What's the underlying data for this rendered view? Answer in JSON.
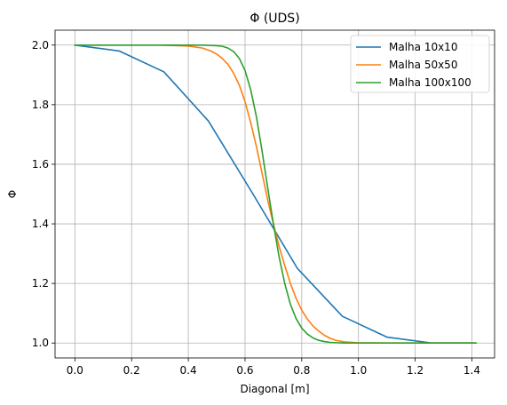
{
  "chart_data": {
    "type": "line",
    "title": "Φ (UDS)",
    "xlabel": "Diagonal [m]",
    "ylabel": "Φ",
    "xlim": [
      -0.07,
      1.48
    ],
    "ylim": [
      0.95,
      2.05
    ],
    "xticks": [
      0.0,
      0.2,
      0.4,
      0.6,
      0.8,
      1.0,
      1.2,
      1.4
    ],
    "xtick_labels": [
      "0.0",
      "0.2",
      "0.4",
      "0.6",
      "0.8",
      "1.0",
      "1.2",
      "1.4"
    ],
    "yticks": [
      1.0,
      1.2,
      1.4,
      1.6,
      1.8,
      2.0
    ],
    "ytick_labels": [
      "1.0",
      "1.2",
      "1.4",
      "1.6",
      "1.8",
      "2.0"
    ],
    "grid": true,
    "legend_position": "top-right",
    "series": [
      {
        "name": "Malha 10x10",
        "color": "#1f77b4",
        "x": [
          0.0,
          0.157,
          0.314,
          0.471,
          0.628,
          0.785,
          0.943,
          1.1,
          1.257,
          1.414
        ],
        "y": [
          2.0,
          1.98,
          1.91,
          1.745,
          1.5,
          1.25,
          1.09,
          1.02,
          1.0,
          1.0
        ]
      },
      {
        "name": "Malha 50x50",
        "color": "#ff7f0e",
        "x": [
          0.0,
          0.2,
          0.3,
          0.4,
          0.45,
          0.48,
          0.5,
          0.52,
          0.54,
          0.56,
          0.58,
          0.6,
          0.62,
          0.64,
          0.66,
          0.68,
          0.7,
          0.72,
          0.74,
          0.76,
          0.78,
          0.8,
          0.82,
          0.84,
          0.86,
          0.88,
          0.9,
          0.92,
          0.95,
          1.0,
          1.1,
          1.2,
          1.414
        ],
        "y": [
          2.0,
          2.0,
          2.0,
          1.997,
          1.99,
          1.98,
          1.97,
          1.955,
          1.935,
          1.905,
          1.865,
          1.81,
          1.74,
          1.66,
          1.57,
          1.48,
          1.4,
          1.325,
          1.26,
          1.2,
          1.15,
          1.11,
          1.08,
          1.057,
          1.04,
          1.026,
          1.016,
          1.009,
          1.004,
          1.001,
          1.0,
          1.0,
          1.0
        ]
      },
      {
        "name": "Malha 100x100",
        "color": "#2ca02c",
        "x": [
          0.0,
          0.3,
          0.45,
          0.5,
          0.52,
          0.54,
          0.56,
          0.58,
          0.6,
          0.62,
          0.64,
          0.66,
          0.68,
          0.7,
          0.72,
          0.74,
          0.76,
          0.78,
          0.8,
          0.82,
          0.84,
          0.86,
          0.88,
          0.9,
          0.95,
          1.0,
          1.2,
          1.414
        ],
        "y": [
          2.0,
          2.0,
          2.0,
          1.998,
          1.996,
          1.99,
          1.978,
          1.955,
          1.915,
          1.85,
          1.76,
          1.645,
          1.52,
          1.4,
          1.29,
          1.2,
          1.13,
          1.082,
          1.05,
          1.03,
          1.017,
          1.009,
          1.005,
          1.002,
          1.0,
          1.0,
          1.0,
          1.0
        ]
      }
    ]
  }
}
